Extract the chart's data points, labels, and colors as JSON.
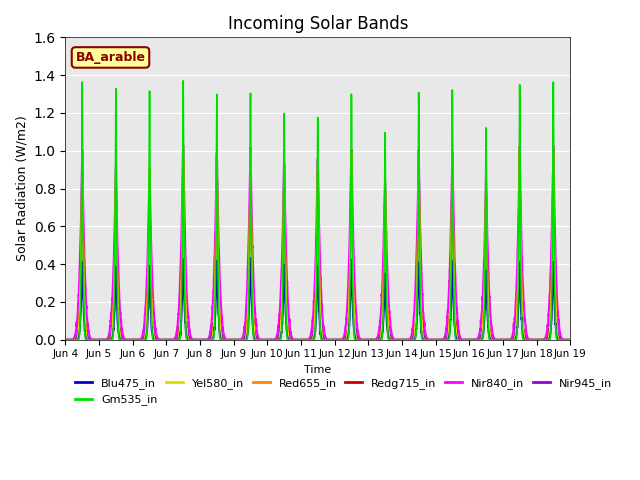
{
  "title": "Incoming Solar Bands",
  "xlabel": "Time",
  "ylabel": "Solar Radiation (W/m2)",
  "annotation": "BA_arable",
  "ylim": [
    0.0,
    1.6
  ],
  "x_ticks": [
    "Jun 4",
    "Jun 5",
    "Jun 6",
    "Jun 7",
    "Jun 8",
    "Jun 9",
    "Jun 10",
    "Jun 11",
    "Jun 12",
    "Jun 13",
    "Jun 14",
    "Jun 15",
    "Jun 16",
    "Jun 17",
    "Jun 18",
    "Jun 19"
  ],
  "series": [
    {
      "label": "Blu475_in",
      "color": "#0000cc",
      "lw": 1.2
    },
    {
      "label": "Gm535_in",
      "color": "#00dd00",
      "lw": 1.2
    },
    {
      "label": "Yel580_in",
      "color": "#dddd00",
      "lw": 1.2
    },
    {
      "label": "Red655_in",
      "color": "#ff8800",
      "lw": 1.2
    },
    {
      "label": "Redg715_in",
      "color": "#cc0000",
      "lw": 1.2
    },
    {
      "label": "Nir840_in",
      "color": "#ff00ff",
      "lw": 1.5
    },
    {
      "label": "Nir945_in",
      "color": "#9900cc",
      "lw": 1.2
    }
  ],
  "bg_color": "#e8e8e8",
  "annotation_bg": "#ffff99",
  "annotation_fg": "#8b0000",
  "n_days": 15,
  "ppd": 200,
  "peak_values": {
    "Blu475_in": 0.44,
    "Gm535_in": 1.37,
    "Yel580_in": 1.05,
    "Red655_in": 1.05,
    "Redg715_in": 1.05,
    "Nir840_in": 1.05,
    "Nir945_in": 0.44
  },
  "width_factors": {
    "Blu475_in": 0.18,
    "Gm535_in": 0.13,
    "Yel580_in": 0.2,
    "Red655_in": 0.2,
    "Redg715_in": 0.2,
    "Nir840_in": 0.35,
    "Nir945_in": 0.3
  },
  "daily_peaks": [
    1.37,
    1.35,
    1.35,
    1.42,
    1.36,
    1.38,
    1.28,
    1.27,
    1.39,
    1.16,
    1.37,
    1.37,
    1.15,
    1.37,
    1.37
  ],
  "daily_factors_narrow": [
    0.95,
    0.88,
    0.87,
    1.0,
    0.97,
    0.99,
    0.92,
    0.93,
    0.99,
    0.82,
    0.96,
    0.97,
    0.83,
    0.97,
    0.97
  ]
}
